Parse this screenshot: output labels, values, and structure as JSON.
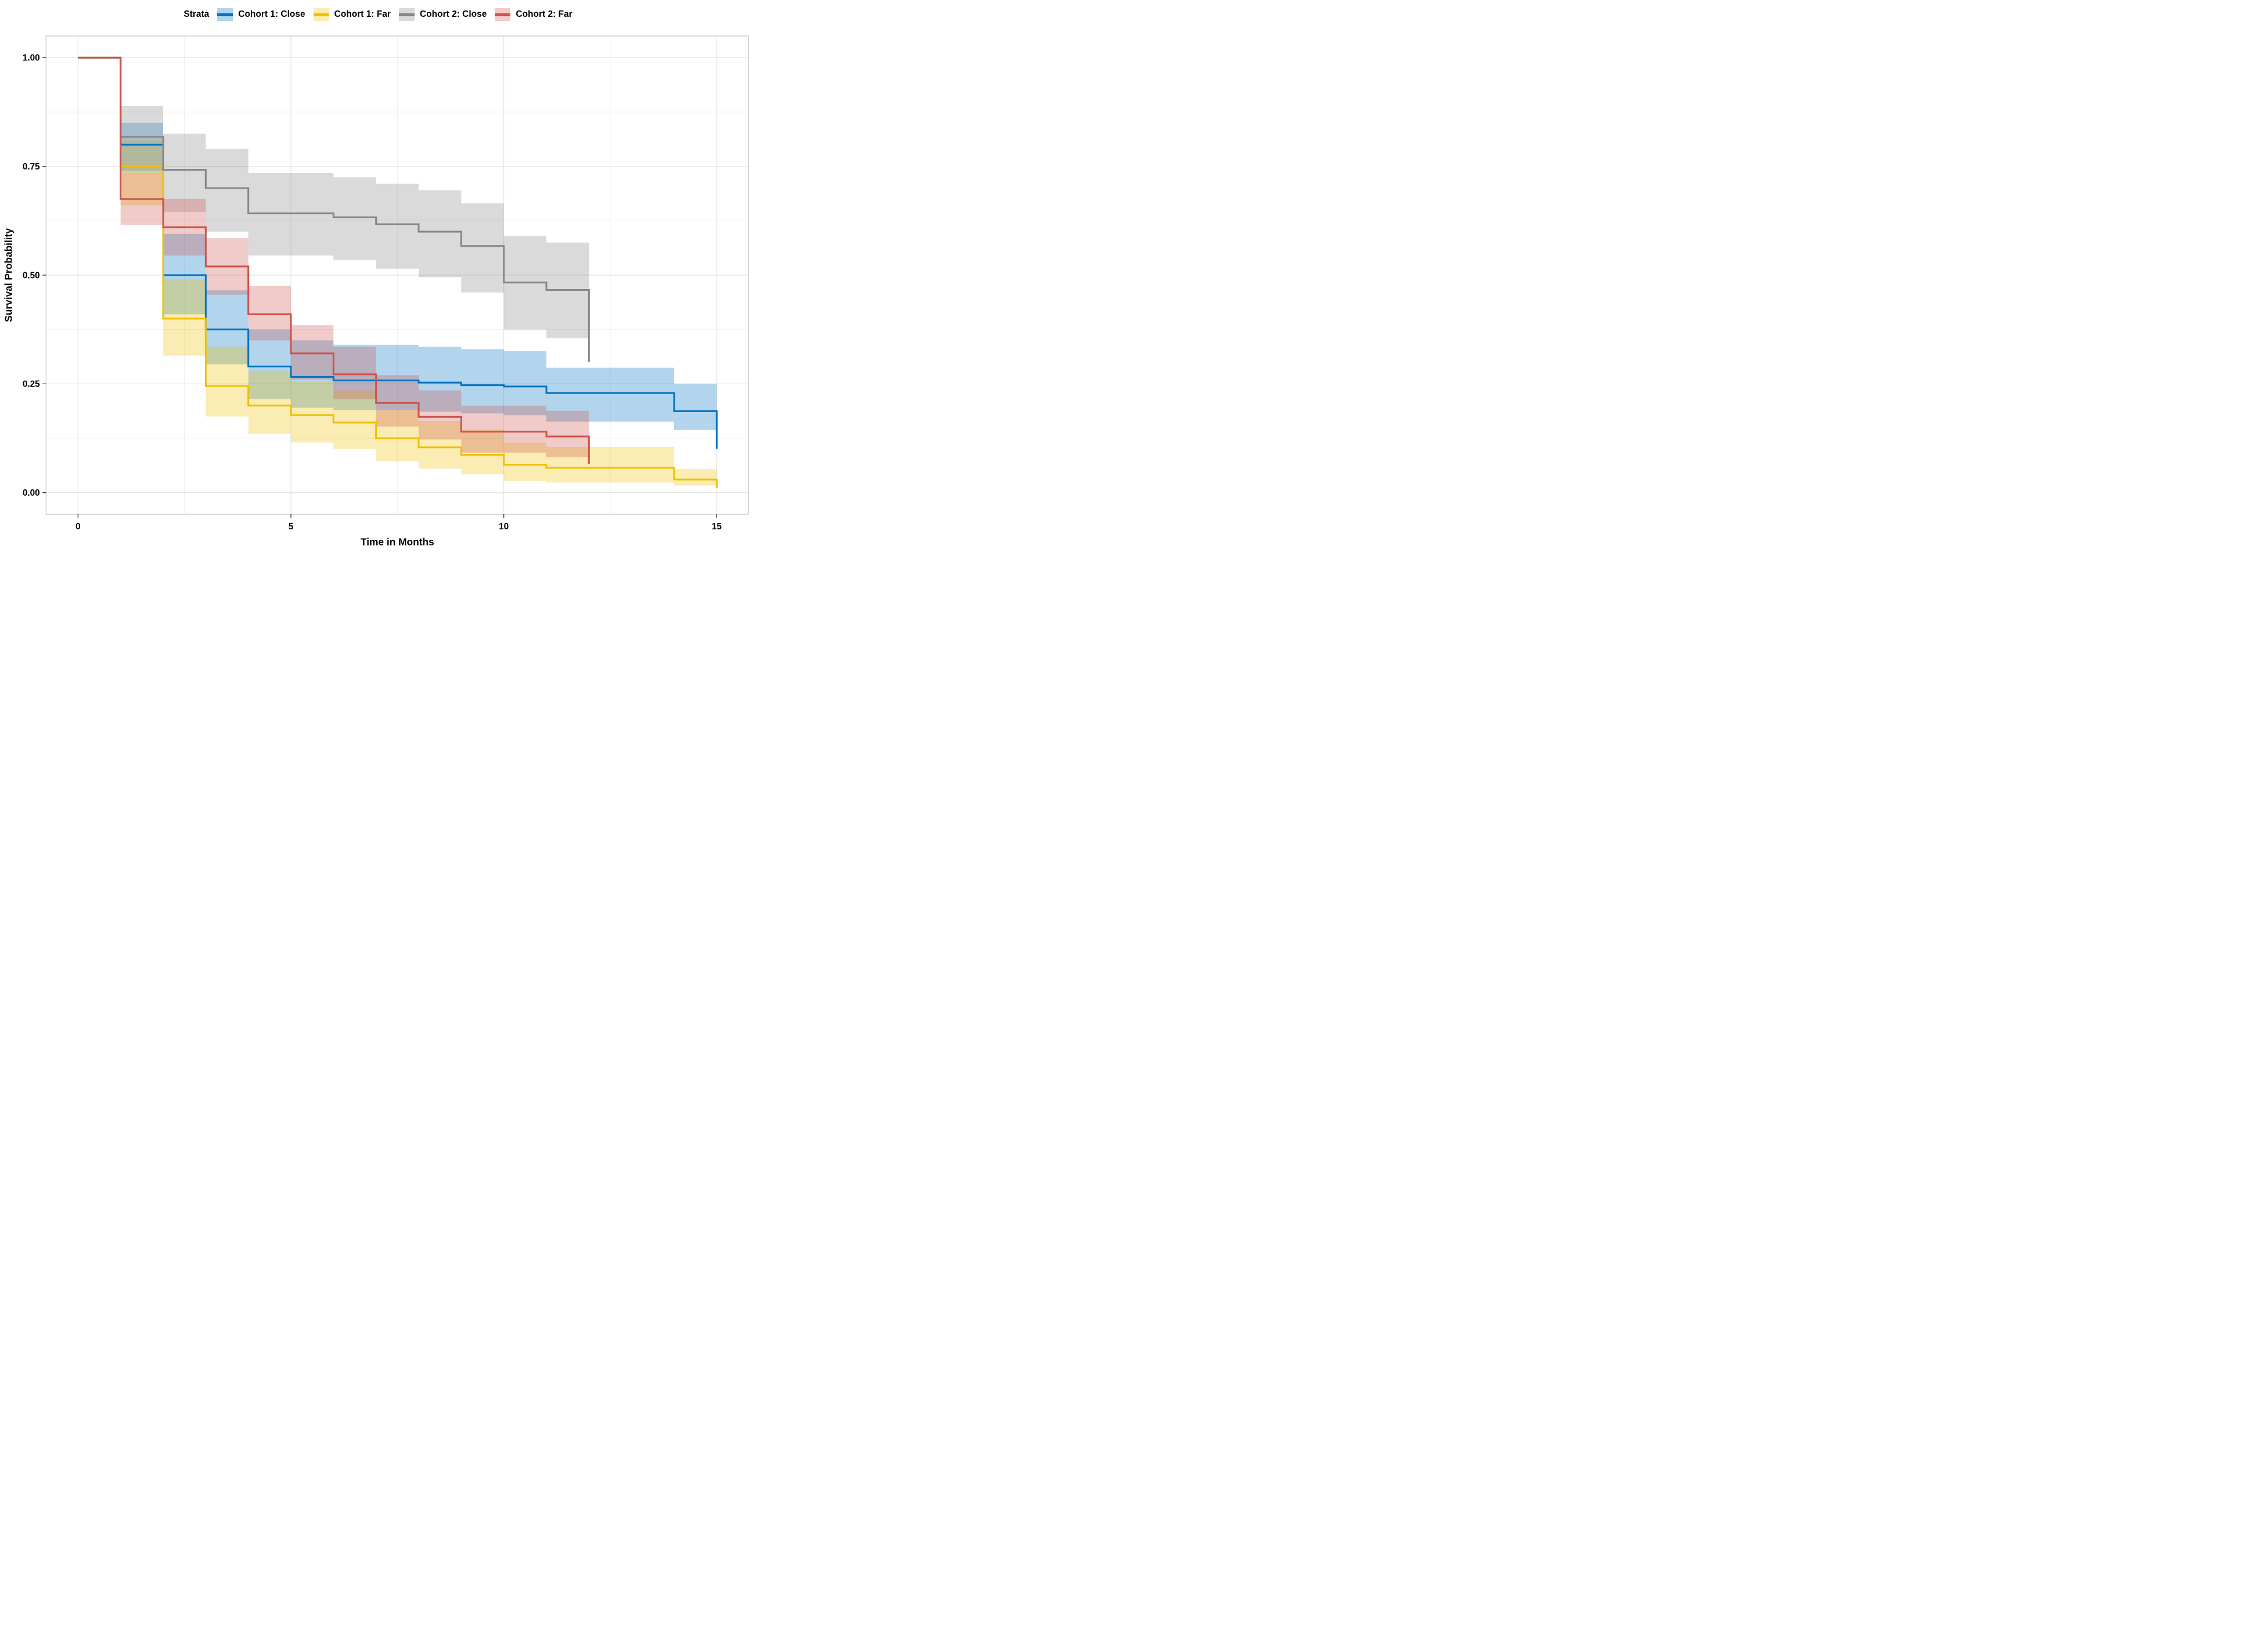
{
  "figure": {
    "kind": "Kaplan-Meier survival plot"
  },
  "legend": {
    "title": "Strata",
    "position": "top",
    "items": [
      {
        "label": "Cohort 1: Close",
        "color": "#0073C2"
      },
      {
        "label": "Cohort 1: Far",
        "color": "#EFC000"
      },
      {
        "label": "Cohort 2: Close",
        "color": "#868686"
      },
      {
        "label": "Cohort 2: Far",
        "color": "#CD534C"
      }
    ]
  },
  "chart_data": {
    "type": "line",
    "subtype": "kaplan-meier-step",
    "title": "",
    "xlabel": "Time in Months",
    "ylabel": "Survival Probability",
    "xlim": [
      0,
      15
    ],
    "ylim": [
      0,
      1
    ],
    "x_ticks": [
      {
        "v": 0,
        "label": "0"
      },
      {
        "v": 5,
        "label": "5"
      },
      {
        "v": 10,
        "label": "10"
      },
      {
        "v": 15,
        "label": "15"
      }
    ],
    "y_ticks": [
      {
        "v": 0.0,
        "label": "0.00"
      },
      {
        "v": 0.25,
        "label": "0.25"
      },
      {
        "v": 0.5,
        "label": "0.50"
      },
      {
        "v": 0.75,
        "label": "0.75"
      },
      {
        "v": 1.0,
        "label": "1.00"
      }
    ],
    "x_minor": [
      2.5,
      7.5,
      12.5
    ],
    "y_minor": [
      0.125,
      0.375,
      0.625,
      0.875
    ],
    "grid": "major+minor",
    "ribbon_opacity": 0.3,
    "series": [
      {
        "name": "Cohort 1: Close",
        "color": "#0073C2",
        "steps": [
          [
            0,
            1.0
          ],
          [
            1,
            0.8
          ],
          [
            2,
            0.5
          ],
          [
            3,
            0.375
          ],
          [
            4,
            0.29
          ],
          [
            5,
            0.266
          ],
          [
            6,
            0.258
          ],
          [
            8,
            0.253
          ],
          [
            9,
            0.247
          ],
          [
            10,
            0.244
          ],
          [
            11,
            0.229
          ],
          [
            14,
            0.187
          ],
          [
            15,
            0.101
          ]
        ],
        "ribbon": [
          [
            1,
            2,
            0.74,
            0.85
          ],
          [
            2,
            3,
            0.41,
            0.595
          ],
          [
            3,
            4,
            0.295,
            0.465
          ],
          [
            4,
            5,
            0.215,
            0.375
          ],
          [
            5,
            6,
            0.195,
            0.35
          ],
          [
            6,
            8,
            0.19,
            0.34
          ],
          [
            8,
            9,
            0.186,
            0.335
          ],
          [
            9,
            10,
            0.182,
            0.33
          ],
          [
            10,
            11,
            0.178,
            0.325
          ],
          [
            11,
            14,
            0.163,
            0.287
          ],
          [
            14,
            15,
            0.144,
            0.25
          ]
        ]
      },
      {
        "name": "Cohort 1: Far",
        "color": "#EFC000",
        "steps": [
          [
            0,
            1.0
          ],
          [
            1,
            0.75
          ],
          [
            2,
            0.4
          ],
          [
            3,
            0.245
          ],
          [
            4,
            0.2
          ],
          [
            5,
            0.178
          ],
          [
            6,
            0.161
          ],
          [
            7,
            0.125
          ],
          [
            8,
            0.104
          ],
          [
            9,
            0.087
          ],
          [
            10,
            0.064
          ],
          [
            11,
            0.057
          ],
          [
            14,
            0.03
          ],
          [
            15,
            0.01
          ]
        ],
        "ribbon": [
          [
            1,
            2,
            0.66,
            0.81
          ],
          [
            2,
            3,
            0.315,
            0.49
          ],
          [
            3,
            4,
            0.175,
            0.335
          ],
          [
            4,
            5,
            0.135,
            0.28
          ],
          [
            5,
            6,
            0.115,
            0.255
          ],
          [
            6,
            7,
            0.1,
            0.235
          ],
          [
            7,
            8,
            0.072,
            0.19
          ],
          [
            8,
            9,
            0.055,
            0.165
          ],
          [
            9,
            10,
            0.042,
            0.145
          ],
          [
            10,
            11,
            0.027,
            0.115
          ],
          [
            11,
            14,
            0.023,
            0.105
          ],
          [
            14,
            15,
            0.016,
            0.054
          ]
        ]
      },
      {
        "name": "Cohort 2: Close",
        "color": "#868686",
        "steps": [
          [
            0,
            1.0
          ],
          [
            1,
            0.818
          ],
          [
            2,
            0.742
          ],
          [
            3,
            0.7
          ],
          [
            4,
            0.642
          ],
          [
            6,
            0.633
          ],
          [
            7,
            0.617
          ],
          [
            8,
            0.6
          ],
          [
            9,
            0.567
          ],
          [
            10,
            0.483
          ],
          [
            11,
            0.466
          ],
          [
            12,
            0.3
          ]
        ],
        "ribbon": [
          [
            1,
            2,
            0.735,
            0.889
          ],
          [
            2,
            3,
            0.645,
            0.825
          ],
          [
            3,
            4,
            0.6,
            0.79
          ],
          [
            4,
            6,
            0.545,
            0.735
          ],
          [
            6,
            7,
            0.535,
            0.725
          ],
          [
            7,
            8,
            0.515,
            0.71
          ],
          [
            8,
            9,
            0.495,
            0.695
          ],
          [
            9,
            10,
            0.46,
            0.665
          ],
          [
            10,
            11,
            0.375,
            0.59
          ],
          [
            11,
            12,
            0.355,
            0.575
          ]
        ]
      },
      {
        "name": "Cohort 2: Far",
        "color": "#CD534C",
        "steps": [
          [
            0,
            1.0
          ],
          [
            1,
            0.675
          ],
          [
            2,
            0.61
          ],
          [
            3,
            0.52
          ],
          [
            4,
            0.41
          ],
          [
            5,
            0.32
          ],
          [
            6,
            0.272
          ],
          [
            7,
            0.206
          ],
          [
            8,
            0.174
          ],
          [
            9,
            0.14
          ],
          [
            11,
            0.129
          ],
          [
            12,
            0.066
          ]
        ],
        "ribbon": [
          [
            1,
            2,
            0.615,
            0.735
          ],
          [
            2,
            3,
            0.545,
            0.675
          ],
          [
            3,
            4,
            0.455,
            0.585
          ],
          [
            4,
            5,
            0.35,
            0.475
          ],
          [
            5,
            6,
            0.26,
            0.385
          ],
          [
            6,
            7,
            0.215,
            0.335
          ],
          [
            7,
            8,
            0.152,
            0.27
          ],
          [
            8,
            9,
            0.122,
            0.235
          ],
          [
            9,
            11,
            0.092,
            0.2
          ],
          [
            11,
            12,
            0.082,
            0.188
          ]
        ]
      }
    ]
  }
}
